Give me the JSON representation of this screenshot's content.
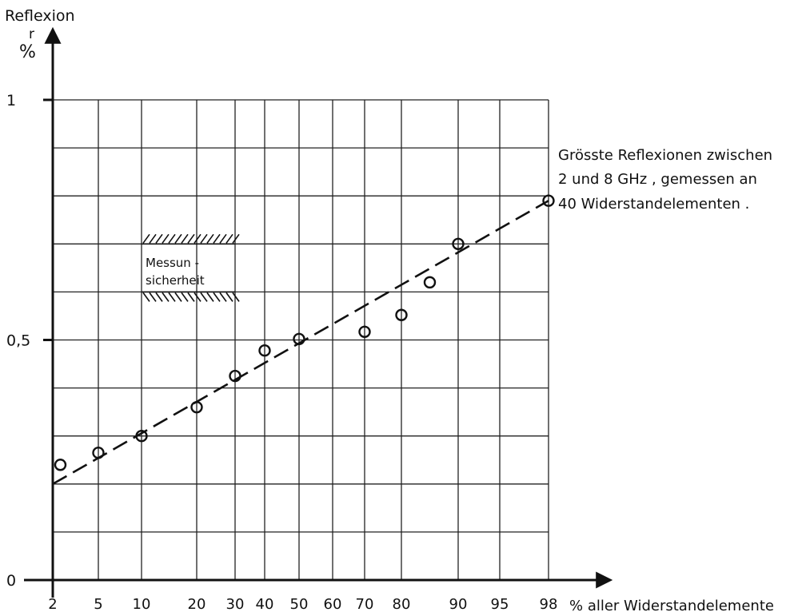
{
  "chart_data": {
    "type": "scatter",
    "ylabel": "Reflexion",
    "ylabel_symbol": "r",
    "yunit": "%",
    "xlabel": "% aller Widerstandelemente",
    "x_ticks": [
      "2",
      "5",
      "10",
      "20",
      "30",
      "40",
      "50",
      "60",
      "70",
      "80",
      "90",
      "95",
      "98"
    ],
    "y_ticks": [
      "0",
      "0,5",
      "1"
    ],
    "ylim": [
      0,
      1
    ],
    "grid": true,
    "points": [
      {
        "x": 2.5,
        "y": 0.24
      },
      {
        "x": 5,
        "y": 0.265
      },
      {
        "x": 10,
        "y": 0.3
      },
      {
        "x": 20,
        "y": 0.36
      },
      {
        "x": 30,
        "y": 0.425
      },
      {
        "x": 40,
        "y": 0.478
      },
      {
        "x": 50,
        "y": 0.502
      },
      {
        "x": 70,
        "y": 0.517
      },
      {
        "x": 80,
        "y": 0.552
      },
      {
        "x": 85,
        "y": 0.62
      },
      {
        "x": 90,
        "y": 0.7
      },
      {
        "x": 98,
        "y": 0.79
      }
    ],
    "trend_line": [
      {
        "x": 2,
        "y": 0.2
      },
      {
        "x": 98,
        "y": 0.79
      }
    ],
    "uncertainty_band": {
      "x": [
        10,
        30
      ],
      "y": [
        0.6,
        0.7
      ],
      "label_lines": [
        "Messun -",
        "sicherheit"
      ]
    },
    "annotation_lines": [
      "Grösste Reflexionen zwischen",
      "2 und 8 GHz , gemessen an",
      "40 Widerstandelementen ."
    ]
  }
}
